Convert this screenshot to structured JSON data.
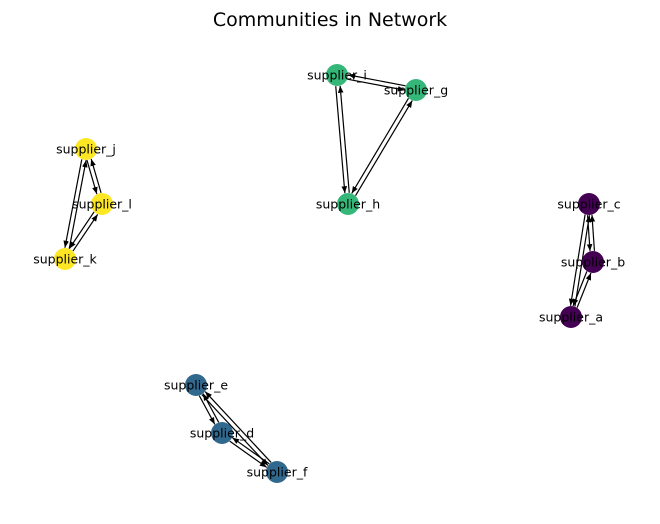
{
  "title": "Communities in Network",
  "communities": [
    {
      "color": "#440154",
      "nodes": [
        "supplier_a",
        "supplier_b",
        "supplier_c"
      ]
    },
    {
      "color": "#31688e",
      "nodes": [
        "supplier_d",
        "supplier_e",
        "supplier_f"
      ]
    },
    {
      "color": "#35b779",
      "nodes": [
        "supplier_g",
        "supplier_h",
        "supplier_i"
      ]
    },
    {
      "color": "#fde725",
      "nodes": [
        "supplier_j",
        "supplier_k",
        "supplier_l"
      ]
    }
  ],
  "edges": [
    [
      "supplier_a",
      "supplier_b"
    ],
    [
      "supplier_b",
      "supplier_a"
    ],
    [
      "supplier_a",
      "supplier_c"
    ],
    [
      "supplier_c",
      "supplier_a"
    ],
    [
      "supplier_b",
      "supplier_c"
    ],
    [
      "supplier_c",
      "supplier_b"
    ],
    [
      "supplier_d",
      "supplier_e"
    ],
    [
      "supplier_e",
      "supplier_d"
    ],
    [
      "supplier_d",
      "supplier_f"
    ],
    [
      "supplier_f",
      "supplier_d"
    ],
    [
      "supplier_e",
      "supplier_f"
    ],
    [
      "supplier_f",
      "supplier_e"
    ],
    [
      "supplier_g",
      "supplier_h"
    ],
    [
      "supplier_h",
      "supplier_g"
    ],
    [
      "supplier_g",
      "supplier_i"
    ],
    [
      "supplier_i",
      "supplier_g"
    ],
    [
      "supplier_h",
      "supplier_i"
    ],
    [
      "supplier_i",
      "supplier_h"
    ],
    [
      "supplier_j",
      "supplier_k"
    ],
    [
      "supplier_k",
      "supplier_j"
    ],
    [
      "supplier_j",
      "supplier_l"
    ],
    [
      "supplier_l",
      "supplier_j"
    ],
    [
      "supplier_k",
      "supplier_l"
    ],
    [
      "supplier_l",
      "supplier_k"
    ]
  ]
}
